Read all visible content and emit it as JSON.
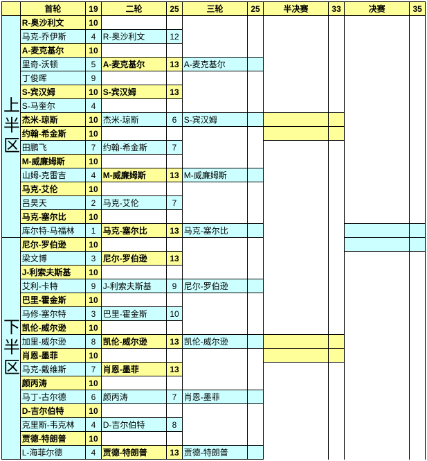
{
  "colors": {
    "header_bg": "#ffff99",
    "win_bg": "#ffff99",
    "lose_bg": "#ccffff",
    "border": "#000000"
  },
  "header": {
    "r1": "首轮",
    "s1": "19",
    "r2": "二轮",
    "s2": "25",
    "r3": "三轮",
    "s3": "25",
    "r4": "半决赛",
    "s4": "33",
    "r5": "决赛",
    "s5": "35"
  },
  "sections": {
    "upper": "上 半 区",
    "lower": "下 半 区"
  },
  "upper": {
    "r1": [
      {
        "n": "R-奥沙利文",
        "s": "10",
        "w": true
      },
      {
        "n": "马克-乔伊斯",
        "s": "4",
        "w": false
      },
      {
        "n": "A-麦克基尔",
        "s": "10",
        "w": true
      },
      {
        "n": "里奇-沃顿",
        "s": "5",
        "w": false
      },
      {
        "n": "丁俊晖",
        "s": "9",
        "w": false
      },
      {
        "n": "S-宾汉姆",
        "s": "10",
        "w": true
      },
      {
        "n": "S-马奎尔",
        "s": "4",
        "w": false
      },
      {
        "n": "杰米-琼斯",
        "s": "10",
        "w": true
      },
      {
        "n": "约翰-希金斯",
        "s": "10",
        "w": true
      },
      {
        "n": "田鹏飞",
        "s": "7",
        "w": false
      },
      {
        "n": "M-威廉姆斯",
        "s": "10",
        "w": true
      },
      {
        "n": "山姆-克雷吉",
        "s": "4",
        "w": false
      },
      {
        "n": "马克-艾伦",
        "s": "10",
        "w": true
      },
      {
        "n": "吕昊天",
        "s": "2",
        "w": false
      },
      {
        "n": "马克-塞尔比",
        "s": "10",
        "w": true
      },
      {
        "n": "库尔特-马福林",
        "s": "1",
        "w": false
      }
    ],
    "r2": [
      {
        "n": "R-奥沙利文",
        "s": "12",
        "w": false
      },
      {
        "n": "A-麦克基尔",
        "s": "13",
        "w": true
      },
      {
        "n": "S-宾汉姆",
        "s": "13",
        "w": true
      },
      {
        "n": "杰米-琼斯",
        "s": "6",
        "w": false
      },
      {
        "n": "约翰-希金斯",
        "s": "7",
        "w": false
      },
      {
        "n": "M-威廉姆斯",
        "s": "13",
        "w": true
      },
      {
        "n": "马克-艾伦",
        "s": "7",
        "w": false
      },
      {
        "n": "马克-塞尔比",
        "s": "13",
        "w": true
      }
    ],
    "r3": [
      {
        "n": "A-麦克基尔",
        "s": "",
        "w": false
      },
      {
        "n": "S-宾汉姆",
        "s": "",
        "w": false
      },
      {
        "n": "M-威廉姆斯",
        "s": "",
        "w": false
      },
      {
        "n": "马克-塞尔比",
        "s": "",
        "w": false
      }
    ]
  },
  "lower": {
    "r1": [
      {
        "n": "尼尔-罗伯逊",
        "s": "10",
        "w": true
      },
      {
        "n": "梁文博",
        "s": "3",
        "w": false
      },
      {
        "n": "J-利索夫斯基",
        "s": "10",
        "w": true
      },
      {
        "n": "艾利-卡特",
        "s": "9",
        "w": false
      },
      {
        "n": "巴里-霍金斯",
        "s": "10",
        "w": true
      },
      {
        "n": "马修-塞尔特",
        "s": "3",
        "w": false
      },
      {
        "n": "凯伦-威尔逊",
        "s": "10",
        "w": true
      },
      {
        "n": "加里-威尔逊",
        "s": "8",
        "w": false
      },
      {
        "n": "肖恩-墨菲",
        "s": "10",
        "w": true
      },
      {
        "n": "马克-戴维斯",
        "s": "7",
        "w": false
      },
      {
        "n": "颜丙涛",
        "s": "10",
        "w": true
      },
      {
        "n": "马丁-古尔德",
        "s": "6",
        "w": false
      },
      {
        "n": "D-吉尔伯特",
        "s": "10",
        "w": true
      },
      {
        "n": "克里斯-韦克林",
        "s": "4",
        "w": false
      },
      {
        "n": "贾德-特朗普",
        "s": "10",
        "w": true
      },
      {
        "n": "L-海菲尔德",
        "s": "4",
        "w": false
      }
    ],
    "r2": [
      {
        "n": "尼尔-罗伯逊",
        "s": "13",
        "w": true
      },
      {
        "n": "J-利索夫斯基",
        "s": "9",
        "w": false
      },
      {
        "n": "巴里-霍金斯",
        "s": "10",
        "w": false
      },
      {
        "n": "凯伦-威尔逊",
        "s": "13",
        "w": true
      },
      {
        "n": "肖恩-墨菲",
        "s": "13",
        "w": true
      },
      {
        "n": "颜丙涛",
        "s": "7",
        "w": false
      },
      {
        "n": "D-吉尔伯特",
        "s": "8",
        "w": false
      },
      {
        "n": "贾德-特朗普",
        "s": "13",
        "w": true
      }
    ],
    "r3": [
      {
        "n": "尼尔-罗伯逊",
        "s": "",
        "w": false
      },
      {
        "n": "凯伦-威尔逊",
        "s": "",
        "w": false
      },
      {
        "n": "肖恩-墨菲",
        "s": "",
        "w": false
      },
      {
        "n": "贾德-特朗普",
        "s": "",
        "w": false
      }
    ]
  }
}
